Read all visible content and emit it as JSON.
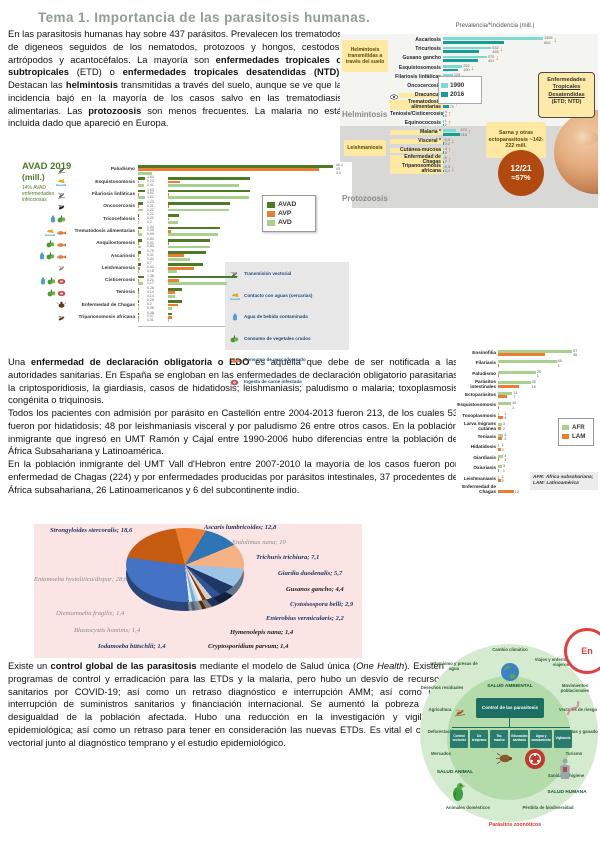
{
  "page": {
    "title": "Tema 1. Importancia de las parasitosis humanas."
  },
  "paragraphs": {
    "p1": [
      {
        "t": "En las parasitosis humanas hay sobre 437 parásitos. Prevalecen los trematodos de digeneos seguidos de los nematodos, protozoos y hongos, cestodos, artrópodos y acantocéfalos. La mayoría son "
      },
      {
        "t": "enfermedades tropicales o subtropicales",
        "b": true
      },
      {
        "t": " (ETD) o "
      },
      {
        "t": "enfermedades tropicales desatendidas (NTD)",
        "b": true
      },
      {
        "t": ". Destacan las "
      },
      {
        "t": "helmintosis",
        "b": true
      },
      {
        "t": " transmitidas a través del suelo, aunque se ve que la incidencia bajó en la mayoría de los casos salvo en las trematodiasis alimentarias. Las "
      },
      {
        "t": "protozoosis",
        "b": true
      },
      {
        "t": " son menos frecuentes. La malaria no está incluida dado que apareció en Europa."
      }
    ],
    "p2a": [
      {
        "t": "Una "
      },
      {
        "t": "enfermedad de declaración obligatoria o EDO",
        "b": true
      },
      {
        "t": " es aquella que debe de ser notificada a las autoridades sanitarias. En España se engloban en las enfermedades de declaración obligatorio parasitarias la criptosporidiosis, la giardiasis, casos de hidatidosis; leishmaniasis; paludismo o malaria; toxoplasmosis congénita o triquinosis."
      }
    ],
    "p2b": [
      {
        "t": "Todos los pacientes con admisión por parásito en Castellón entre 2004-2013 fueron 213, de los cuales 53 fueron por hidatidosis; 48 por leishmaniasis visceral y por paludismo 26 entre otros casos. En la población inmigrante que ingresó en UMT Ramón y Cajal entre 1990-2006 hubo diferencias entre la población de África Subsahariana y Latinoamérica."
      }
    ],
    "p2c": [
      {
        "t": "En la población inmigrante del UMT Vall d'Hebron entre 2007-2010 la mayoría de los casos fueron por enfermedad de Chagas (224) y por enfermedades producidas por parásitos intestinales, 37 procedentes de África subsahariana, 26 Latinoamericanos y 6 del subcontinente indio."
      }
    ],
    "p3": [
      {
        "t": "Existe un "
      },
      {
        "t": "control global de las parasitosis",
        "b": true
      },
      {
        "t": " mediante el modelo de Salud única ("
      },
      {
        "t": "One Health",
        "i": true
      },
      {
        "t": "). Existen programas de control y erradicación para las ETDs y la malaria, pero hubo un desvío de recursos sanitarios por COVID-19; así como un retraso diagnóstico e interrupción AMM; así como una interrupción de suministros sanitarios y financiación internacional. Se aumentó la pobreza y la desigualdad de la población afectada. Hubo una reducción en la investigación y vigilancia epidemiológica; así como un retraso para tener en consideración las nuevas ETDs. Es vital el control vectorial junto al diagnóstico temprano y el estudio epidemiológico."
      }
    ]
  },
  "chart_data": [
    {
      "id": "prevalencia-incidencia-etd",
      "type": "bar",
      "orientation": "horizontal",
      "title": "Prevalencia/*Incidencia (mill.)",
      "legend": [
        "1990",
        "2016"
      ],
      "colors": {
        "y1990": "#7fd8d2",
        "y2016": "#169e93",
        "arrow": "#e0731d",
        "highlight": "#fde9a2"
      },
      "categories": [
        "Ascariosis",
        "Tricuriosis",
        "Gusano gancho",
        "Esquistosomosis",
        "Filariosis linfáticas",
        "Oncocercosis",
        "Dracunculosis",
        "Trematodosis alimentarias",
        "Teniosis/Cisticercosis",
        "Equinococosis",
        "Malaria *",
        "Visceral *",
        "Cutánea-mucosa",
        "Enfermedad de Chagas",
        "Tripanosomosis africana"
      ],
      "series": [
        {
          "name": "1990",
          "values": [
            1305,
            632,
            575,
            252,
            129,
            21,
            1,
            45,
            4,
            1,
            170,
            0.3,
            4,
            6,
            0.3
          ]
        },
        {
          "name": "2016",
          "values": [
            800,
            465,
            451,
            190,
            72,
            15,
            0.03,
            75,
            5,
            2,
            216,
            0.2,
            6,
            7,
            0.1
          ]
        }
      ],
      "trends": [
        "down",
        "down",
        "down",
        "down",
        "down",
        "down",
        "down",
        "up",
        "up",
        "up",
        "up",
        "down",
        "up",
        "up",
        "down"
      ],
      "highlighted": [
        false,
        false,
        false,
        false,
        false,
        false,
        true,
        true,
        false,
        false,
        true,
        true,
        true,
        true,
        true
      ],
      "annotations": {
        "soil_box": "Helmintosis transmitidas a través del suelo",
        "leish_box": "Leishmaniosis",
        "group_labels": [
          "Helmintosis",
          "Protozoosis"
        ],
        "etd_box_lines": [
          "Enfermedades",
          "Tropicales",
          "Desatendidas",
          "(ETD; NTD)"
        ],
        "scabies_box": "Sarna y otras ectoparasitosis ~142-222 mill.",
        "badge_lines": [
          "12/21",
          "≈57%"
        ],
        "photo": "hands-holding-baby-feet"
      }
    },
    {
      "id": "avad-2019",
      "type": "bar",
      "orientation": "horizontal",
      "title": "AVAD 2019",
      "subtitle": "(mill.)",
      "note": "14% AVAD enfermedades infecciosas",
      "legend": [
        "AVAD",
        "AVP",
        "AVD"
      ],
      "colors": {
        "AVAD": "#4e7a27",
        "AVP": "#ed7d31",
        "AVD": "#a9d08e"
      },
      "categories": [
        "Paludismo",
        "Esquistosomosis",
        "Filariosis linfáticas",
        "Oncocercosis",
        "Tricocefalosis",
        "Trematodosis alimentarias",
        "Anquilostomosis",
        "Ascariosis",
        "Leishmaniosis",
        "Cisticercosis",
        "Teniosis",
        "Enfermedad de Chagas",
        "Tripanosomosis africana"
      ],
      "icons": [
        [
          "mosquito"
        ],
        [
          "waterfowl"
        ],
        [
          "mosquito"
        ],
        [
          "blackfly"
        ],
        [
          "water-jug",
          "vegetables"
        ],
        [
          "waterfowl",
          "fish"
        ],
        [
          "vegetables",
          "fish"
        ],
        [
          "water-jug",
          "vegetables",
          "fish"
        ],
        [
          "sandfly"
        ],
        [
          "water-jug",
          "vegetables",
          "meat"
        ],
        [
          "vegetables",
          "meat"
        ],
        [
          "kissing-bug"
        ],
        [
          "tsetse-fly"
        ]
      ],
      "series": [
        {
          "name": "AVAD",
          "values": [
            46.4,
            1.64,
            1.63,
            1.23,
            0.21,
            1.04,
            0.84,
            0.75,
            0.7,
            1.38,
            0.28,
            0.28,
            0.08
          ]
        },
        {
          "name": "AVP",
          "values": [
            43,
            0.23,
            0.02,
            0.01,
            0.01,
            0.05,
            0.01,
            0.31,
            0.52,
            0.21,
            0.14,
            0.2,
            0.07
          ]
        },
        {
          "name": "AVD",
          "values": [
            3.4,
            1.41,
            1.61,
            1.22,
            0.2,
            0.99,
            0.83,
            0.44,
            0.18,
            1.17,
            0.14,
            0.08,
            0.01
          ]
        }
      ],
      "icon_legend": [
        {
          "icon": "mosquito",
          "label": "Transmisión vectorial"
        },
        {
          "icon": "waterfowl",
          "label": "Contacto con aguas (cercarias)"
        },
        {
          "icon": "water-jug",
          "label": "Agua de bebida contaminada"
        },
        {
          "icon": "vegetables",
          "label": "Consumo de vegetales crudos"
        },
        {
          "icon": "fish",
          "label": "Consumo de pescado crudo"
        },
        {
          "icon": "meat",
          "label": "Ingesta de carne infectada"
        }
      ]
    },
    {
      "id": "umt-ramon-y-cajal-1990-2006",
      "type": "bar",
      "orientation": "horizontal",
      "legend": [
        "AFR",
        "LAM"
      ],
      "colors": {
        "AFR": "#a9d08e",
        "LAM": "#ed7d31"
      },
      "categories": [
        "Eosinofilia",
        "Filariasis",
        "Paludismo",
        "Parásitos intestinales",
        "Ectoparásitos",
        "Esquistosomosis",
        "Toxoplasmosis",
        "Larva migrans cutánea",
        "Teniasis",
        "Hidatidosis",
        "Giardiasis",
        "Oxiuriasis",
        "Leishmaniasis",
        "Enfermedad de Chagas"
      ],
      "series": [
        {
          "name": "AFR",
          "values": [
            57,
            45,
            29,
            25,
            11,
            10,
            1,
            3,
            4,
            1,
            4,
            3,
            1,
            0
          ]
        },
        {
          "name": "LAM",
          "values": [
            36,
            1,
            1,
            16,
            7,
            1,
            4,
            2,
            3,
            2,
            1,
            1,
            2,
            12
          ]
        }
      ],
      "note": "AFR: África subsahariana; LAM: Latinoamérica"
    },
    {
      "id": "parasitosis-umt-vall-hebron",
      "type": "pie",
      "background": "#fbe5e4",
      "slices": [
        {
          "name": "Ascaris lumbricoides",
          "value": 12.8,
          "text": "Ascaris lumbricoides; 12,8",
          "color": "#ed7d31"
        },
        {
          "name": "Endolimax nana",
          "value": 10,
          "text": "Endolimax nana; 10",
          "color": "#2e75b6"
        },
        {
          "name": "Trichuris trichiura",
          "value": 7.1,
          "text": "Trichuris trichiura; 7,1",
          "color": "#f4b183"
        },
        {
          "name": "Giardia duodenalis",
          "value": 5.7,
          "text": "Giardia duodenalis; 5,7",
          "color": "#9dc3e6"
        },
        {
          "name": "Gusanos gancho",
          "value": 4.4,
          "text": "Gusanos gancho; 4,4",
          "color": "#1f3864"
        },
        {
          "name": "Cystoisospora belli",
          "value": 2.9,
          "text": "Cystoisospora belli; 2,9",
          "color": "#2f5597"
        },
        {
          "name": "Enterobius vermicularis",
          "value": 2.2,
          "text": "Enterobius vermicularis; 2,2",
          "color": "#d9cbbd"
        },
        {
          "name": "Hymenolepis nana",
          "value": 1.4,
          "text": "Hymenolepis nana; 1,4",
          "color": "#843c0c"
        },
        {
          "name": "Cryptosporidium parvum",
          "value": 1.4,
          "text": "Cryptosporidium parvum; 1,4",
          "color": "#f5f0eb"
        },
        {
          "name": "Iodamoeba bütschlii",
          "value": 1.4,
          "text": "Iodamoeba bütschlii; 1,4",
          "color": "#bdd7ee"
        },
        {
          "name": "Blastocystis hominis",
          "value": 1.4,
          "text": "Blastocystis hominis; 1,4",
          "color": "#6fa8dc"
        },
        {
          "name": "Dientamoeba fragilis",
          "value": 1.4,
          "text": "Dientamoeba fragilis; 1,4",
          "color": "#deeaf6"
        },
        {
          "name": "Entamoeba hystolitica/dispar",
          "value": 28.6,
          "text": "Entamoeba hystolitica/dispar; 28,6",
          "color": "#4472c4"
        },
        {
          "name": "Strongyloides stercoralis",
          "value": 18.6,
          "text": "Strongyloides stercoralis; 18,6",
          "color": "#c55a11"
        }
      ]
    }
  ],
  "one_health": {
    "env_label": "SALUD AMBIENTAL",
    "animal_label": "SALUD ANIMAL",
    "human_label": "SALUD HUMANA",
    "center_box": "Control de las parasitosis",
    "sub_boxes": [
      "Control vectorial",
      "Dx temprano",
      "Tto. masivo",
      "Educación sanitaria",
      "Agua y saneamiento",
      "Vigilancia"
    ],
    "ring_left": [
      "Cambio climático",
      "Urbanismo y presas de agua",
      "Desechos residuales",
      "Agricultura",
      "Deforestación",
      "Mercados",
      "Animales domésticos"
    ],
    "ring_right": [
      "Viajes y enfermedades de viajeros",
      "Movimientos poblacionales",
      "Vectores de riesgo",
      "Mascotas y ganado",
      "Turismo",
      "Sanidad e higiene",
      "Pérdida de biodiversidad"
    ],
    "bottom_label": "Parásitos zoonóticos",
    "corner_badge": "En"
  }
}
